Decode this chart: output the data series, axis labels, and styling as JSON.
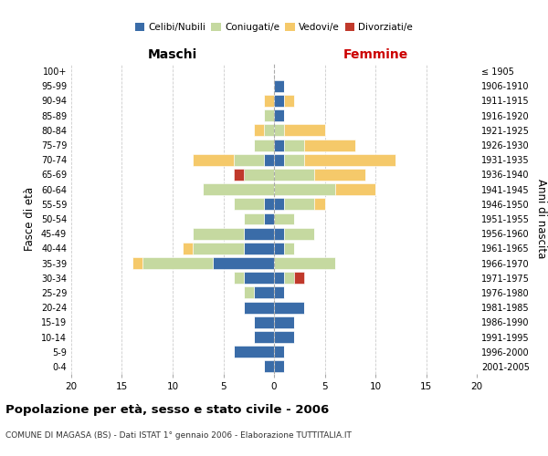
{
  "age_groups": [
    "0-4",
    "5-9",
    "10-14",
    "15-19",
    "20-24",
    "25-29",
    "30-34",
    "35-39",
    "40-44",
    "45-49",
    "50-54",
    "55-59",
    "60-64",
    "65-69",
    "70-74",
    "75-79",
    "80-84",
    "85-89",
    "90-94",
    "95-99",
    "100+"
  ],
  "birth_years": [
    "2001-2005",
    "1996-2000",
    "1991-1995",
    "1986-1990",
    "1981-1985",
    "1976-1980",
    "1971-1975",
    "1966-1970",
    "1961-1965",
    "1956-1960",
    "1951-1955",
    "1946-1950",
    "1941-1945",
    "1936-1940",
    "1931-1935",
    "1926-1930",
    "1921-1925",
    "1916-1920",
    "1911-1915",
    "1906-1910",
    "≤ 1905"
  ],
  "maschi": {
    "celibi": [
      1,
      4,
      2,
      2,
      3,
      2,
      3,
      6,
      3,
      3,
      1,
      1,
      0,
      0,
      1,
      0,
      0,
      0,
      0,
      0,
      0
    ],
    "coniugati": [
      0,
      0,
      0,
      0,
      0,
      1,
      1,
      7,
      5,
      5,
      2,
      3,
      7,
      3,
      3,
      2,
      1,
      1,
      0,
      0,
      0
    ],
    "vedovi": [
      0,
      0,
      0,
      0,
      0,
      0,
      0,
      1,
      1,
      0,
      0,
      0,
      0,
      0,
      4,
      0,
      1,
      0,
      1,
      0,
      0
    ],
    "divorziati": [
      0,
      0,
      0,
      0,
      0,
      0,
      0,
      0,
      0,
      0,
      0,
      0,
      0,
      1,
      0,
      0,
      0,
      0,
      0,
      0,
      0
    ]
  },
  "femmine": {
    "nubili": [
      1,
      1,
      2,
      2,
      3,
      1,
      1,
      0,
      1,
      1,
      0,
      1,
      0,
      0,
      1,
      1,
      0,
      1,
      1,
      1,
      0
    ],
    "coniugate": [
      0,
      0,
      0,
      0,
      0,
      0,
      1,
      6,
      1,
      3,
      2,
      3,
      6,
      4,
      2,
      2,
      1,
      0,
      0,
      0,
      0
    ],
    "vedove": [
      0,
      0,
      0,
      0,
      0,
      0,
      0,
      0,
      0,
      0,
      0,
      1,
      4,
      5,
      9,
      5,
      4,
      0,
      1,
      0,
      0
    ],
    "divorziate": [
      0,
      0,
      0,
      0,
      0,
      0,
      1,
      0,
      0,
      0,
      0,
      0,
      0,
      0,
      0,
      0,
      0,
      0,
      0,
      0,
      0
    ]
  },
  "colors": {
    "celibi_nubili": "#3a6ca8",
    "coniugati": "#c5d9a0",
    "vedovi": "#f5c96a",
    "divorziati": "#c0392b"
  },
  "title": "Popolazione per età, sesso e stato civile - 2006",
  "subtitle": "COMUNE DI MAGASA (BS) - Dati ISTAT 1° gennaio 2006 - Elaborazione TUTTITALIA.IT",
  "xlabel_left": "Maschi",
  "xlabel_right": "Femmine",
  "ylabel_left": "Fasce di età",
  "ylabel_right": "Anni di nascita",
  "xlim": 20,
  "background_color": "#ffffff",
  "grid_color": "#cccccc"
}
